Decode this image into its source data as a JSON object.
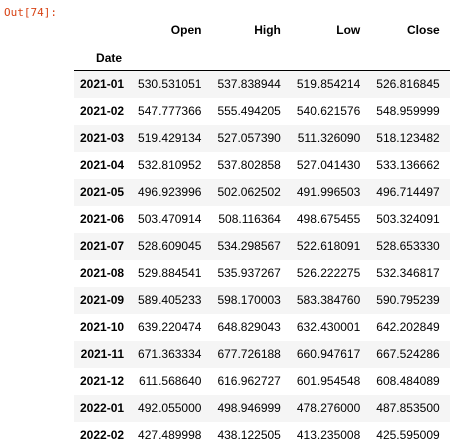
{
  "prompt": "Out[74]:",
  "table": {
    "columns": [
      "Open",
      "High",
      "Low",
      "Close"
    ],
    "index_name": "Date",
    "rows": [
      {
        "date": "2021-01",
        "values": [
          "530.531051",
          "537.838944",
          "519.854214",
          "526.816845"
        ]
      },
      {
        "date": "2021-02",
        "values": [
          "547.777366",
          "555.494205",
          "540.621576",
          "548.959999"
        ]
      },
      {
        "date": "2021-03",
        "values": [
          "519.429134",
          "527.057390",
          "511.326090",
          "518.123482"
        ]
      },
      {
        "date": "2021-04",
        "values": [
          "532.810952",
          "537.802858",
          "527.041430",
          "533.136662"
        ]
      },
      {
        "date": "2021-05",
        "values": [
          "496.923996",
          "502.062502",
          "491.996503",
          "496.714497"
        ]
      },
      {
        "date": "2021-06",
        "values": [
          "503.470914",
          "508.116364",
          "498.675455",
          "503.324091"
        ]
      },
      {
        "date": "2021-07",
        "values": [
          "528.609045",
          "534.298567",
          "522.618091",
          "528.653330"
        ]
      },
      {
        "date": "2021-08",
        "values": [
          "529.884541",
          "535.937267",
          "526.222275",
          "532.346817"
        ]
      },
      {
        "date": "2021-09",
        "values": [
          "589.405233",
          "598.170003",
          "583.384760",
          "590.795239"
        ]
      },
      {
        "date": "2021-10",
        "values": [
          "639.220474",
          "648.829043",
          "632.430001",
          "642.202849"
        ]
      },
      {
        "date": "2021-11",
        "values": [
          "671.363334",
          "677.726188",
          "660.947617",
          "667.524286"
        ]
      },
      {
        "date": "2021-12",
        "values": [
          "611.568640",
          "616.962727",
          "601.954548",
          "608.484089"
        ]
      },
      {
        "date": "2022-01",
        "values": [
          "492.055000",
          "498.946999",
          "478.276000",
          "487.853500"
        ]
      },
      {
        "date": "2022-02",
        "values": [
          "427.489998",
          "438.122505",
          "413.235008",
          "425.595009"
        ]
      }
    ]
  }
}
